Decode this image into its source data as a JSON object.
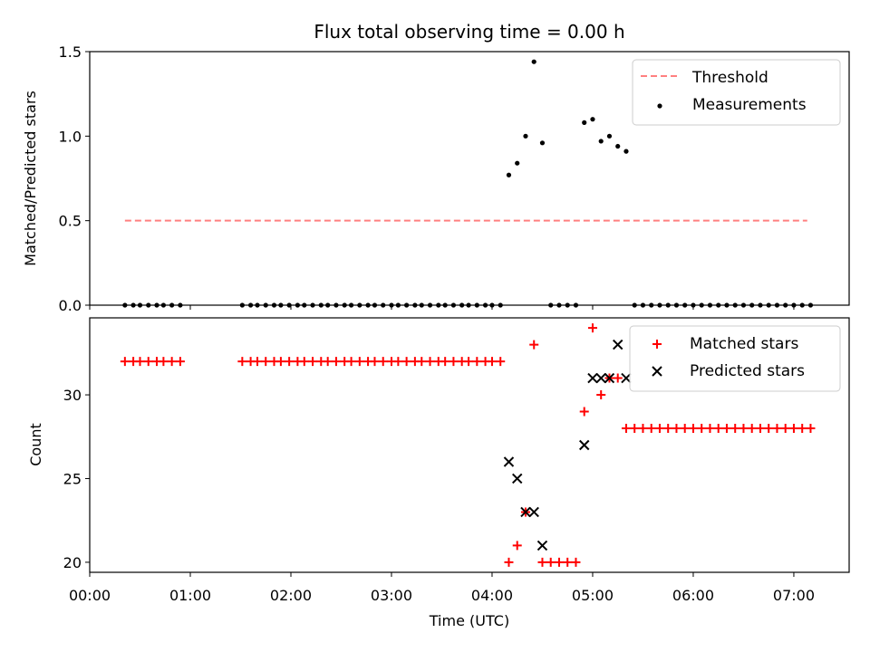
{
  "chart_data": [
    {
      "type": "scatter",
      "title": "Flux total observing time = 0.00 h",
      "ylabel": "Matched/Predicted stars",
      "xlabel": "",
      "xlim": [
        "00:00",
        "07:33"
      ],
      "ylim": [
        0,
        1.5
      ],
      "x_tick_labels": [
        "00:00",
        "01:00",
        "02:00",
        "03:00",
        "04:00",
        "05:00",
        "06:00",
        "07:00"
      ],
      "y_ticks": [
        "0.0",
        "0.5",
        "1.0",
        "1.5"
      ],
      "legend_position": "top-right",
      "threshold": {
        "name": "Threshold",
        "color": "#ff8080",
        "style": "dashed",
        "value": 0.5,
        "x_range": [
          "00:21",
          "07:08"
        ]
      },
      "series": [
        {
          "name": "Measurements",
          "color": "#000000",
          "marker": "dot",
          "points": [
            [
              "00:21",
              0
            ],
            [
              "00:26",
              0
            ],
            [
              "00:30",
              0
            ],
            [
              "00:35",
              0
            ],
            [
              "00:40",
              0
            ],
            [
              "00:44",
              0
            ],
            [
              "00:49",
              0
            ],
            [
              "00:54",
              0
            ],
            [
              "01:31",
              0
            ],
            [
              "01:36",
              0
            ],
            [
              "01:40",
              0
            ],
            [
              "01:45",
              0
            ],
            [
              "01:50",
              0
            ],
            [
              "01:54",
              0
            ],
            [
              "01:59",
              0
            ],
            [
              "02:04",
              0
            ],
            [
              "02:08",
              0
            ],
            [
              "02:13",
              0
            ],
            [
              "02:18",
              0
            ],
            [
              "02:22",
              0
            ],
            [
              "02:27",
              0
            ],
            [
              "02:32",
              0
            ],
            [
              "02:36",
              0
            ],
            [
              "02:41",
              0
            ],
            [
              "02:46",
              0
            ],
            [
              "02:50",
              0
            ],
            [
              "02:55",
              0
            ],
            [
              "03:00",
              0
            ],
            [
              "03:04",
              0
            ],
            [
              "03:09",
              0
            ],
            [
              "03:14",
              0
            ],
            [
              "03:18",
              0
            ],
            [
              "03:23",
              0
            ],
            [
              "03:28",
              0
            ],
            [
              "03:32",
              0
            ],
            [
              "03:37",
              0
            ],
            [
              "03:42",
              0
            ],
            [
              "03:46",
              0
            ],
            [
              "03:51",
              0
            ],
            [
              "03:56",
              0
            ],
            [
              "04:00",
              0
            ],
            [
              "04:05",
              0
            ],
            [
              "04:10",
              0.77
            ],
            [
              "04:15",
              0.84
            ],
            [
              "04:20",
              1.0
            ],
            [
              "04:25",
              1.44
            ],
            [
              "04:30",
              0.96
            ],
            [
              "04:35",
              0
            ],
            [
              "04:40",
              0
            ],
            [
              "04:45",
              0
            ],
            [
              "04:50",
              0
            ],
            [
              "04:55",
              1.08
            ],
            [
              "05:00",
              1.1
            ],
            [
              "05:05",
              0.97
            ],
            [
              "05:10",
              1.0
            ],
            [
              "05:15",
              0.94
            ],
            [
              "05:20",
              0.91
            ],
            [
              "05:25",
              0
            ],
            [
              "05:30",
              0
            ],
            [
              "05:35",
              0
            ],
            [
              "05:40",
              0
            ],
            [
              "05:45",
              0
            ],
            [
              "05:50",
              0
            ],
            [
              "05:55",
              0
            ],
            [
              "06:00",
              0
            ],
            [
              "06:05",
              0
            ],
            [
              "06:10",
              0
            ],
            [
              "06:15",
              0
            ],
            [
              "06:20",
              0
            ],
            [
              "06:25",
              0
            ],
            [
              "06:30",
              0
            ],
            [
              "06:35",
              0
            ],
            [
              "06:40",
              0
            ],
            [
              "06:45",
              0
            ],
            [
              "06:50",
              0
            ],
            [
              "06:55",
              0
            ],
            [
              "07:00",
              0
            ],
            [
              "07:05",
              0
            ],
            [
              "07:10",
              0
            ]
          ]
        }
      ]
    },
    {
      "type": "scatter",
      "title": "",
      "xlabel": "Time (UTC)",
      "ylabel": "Count",
      "xlim": [
        "00:00",
        "07:33"
      ],
      "ylim": [
        19.4,
        34.6
      ],
      "x_tick_labels": [
        "00:00",
        "01:00",
        "02:00",
        "03:00",
        "04:00",
        "05:00",
        "06:00",
        "07:00"
      ],
      "y_ticks": [
        "20",
        "25",
        "30"
      ],
      "legend_position": "top-right",
      "series": [
        {
          "name": "Matched stars",
          "color": "#ff0000",
          "marker": "plus",
          "points": [
            [
              "00:21",
              32
            ],
            [
              "00:26",
              32
            ],
            [
              "00:30",
              32
            ],
            [
              "00:35",
              32
            ],
            [
              "00:40",
              32
            ],
            [
              "00:44",
              32
            ],
            [
              "00:49",
              32
            ],
            [
              "00:54",
              32
            ],
            [
              "01:31",
              32
            ],
            [
              "01:36",
              32
            ],
            [
              "01:40",
              32
            ],
            [
              "01:45",
              32
            ],
            [
              "01:50",
              32
            ],
            [
              "01:54",
              32
            ],
            [
              "01:59",
              32
            ],
            [
              "02:04",
              32
            ],
            [
              "02:08",
              32
            ],
            [
              "02:13",
              32
            ],
            [
              "02:18",
              32
            ],
            [
              "02:22",
              32
            ],
            [
              "02:27",
              32
            ],
            [
              "02:32",
              32
            ],
            [
              "02:36",
              32
            ],
            [
              "02:41",
              32
            ],
            [
              "02:46",
              32
            ],
            [
              "02:50",
              32
            ],
            [
              "02:55",
              32
            ],
            [
              "03:00",
              32
            ],
            [
              "03:04",
              32
            ],
            [
              "03:09",
              32
            ],
            [
              "03:14",
              32
            ],
            [
              "03:18",
              32
            ],
            [
              "03:23",
              32
            ],
            [
              "03:28",
              32
            ],
            [
              "03:32",
              32
            ],
            [
              "03:37",
              32
            ],
            [
              "03:42",
              32
            ],
            [
              "03:46",
              32
            ],
            [
              "03:51",
              32
            ],
            [
              "03:56",
              32
            ],
            [
              "04:00",
              32
            ],
            [
              "04:05",
              32
            ],
            [
              "04:10",
              20
            ],
            [
              "04:15",
              21
            ],
            [
              "04:20",
              23
            ],
            [
              "04:25",
              33
            ],
            [
              "04:30",
              20
            ],
            [
              "04:35",
              20
            ],
            [
              "04:40",
              20
            ],
            [
              "04:45",
              20
            ],
            [
              "04:50",
              20
            ],
            [
              "04:55",
              29
            ],
            [
              "05:00",
              34
            ],
            [
              "05:05",
              30
            ],
            [
              "05:10",
              31
            ],
            [
              "05:15",
              31
            ],
            [
              "05:20",
              28
            ],
            [
              "05:25",
              28
            ],
            [
              "05:30",
              28
            ],
            [
              "05:35",
              28
            ],
            [
              "05:40",
              28
            ],
            [
              "05:45",
              28
            ],
            [
              "05:50",
              28
            ],
            [
              "05:55",
              28
            ],
            [
              "06:00",
              28
            ],
            [
              "06:05",
              28
            ],
            [
              "06:10",
              28
            ],
            [
              "06:15",
              28
            ],
            [
              "06:20",
              28
            ],
            [
              "06:25",
              28
            ],
            [
              "06:30",
              28
            ],
            [
              "06:35",
              28
            ],
            [
              "06:40",
              28
            ],
            [
              "06:45",
              28
            ],
            [
              "06:50",
              28
            ],
            [
              "06:55",
              28
            ],
            [
              "07:00",
              28
            ],
            [
              "07:05",
              28
            ],
            [
              "07:10",
              28
            ]
          ]
        },
        {
          "name": "Predicted stars",
          "color": "#000000",
          "marker": "x",
          "points": [
            [
              "04:10",
              26
            ],
            [
              "04:15",
              25
            ],
            [
              "04:20",
              23
            ],
            [
              "04:25",
              23
            ],
            [
              "04:30",
              21
            ],
            [
              "04:55",
              27
            ],
            [
              "05:00",
              31
            ],
            [
              "05:05",
              31
            ],
            [
              "05:10",
              31
            ],
            [
              "05:15",
              33
            ],
            [
              "05:20",
              31
            ]
          ]
        }
      ]
    }
  ]
}
